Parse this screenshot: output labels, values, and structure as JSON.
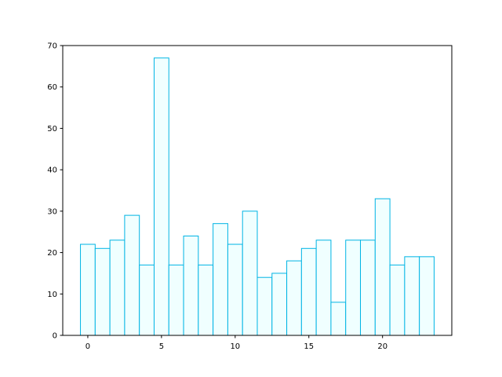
{
  "chart_data": {
    "type": "bar",
    "x": [
      0,
      1,
      2,
      3,
      4,
      5,
      6,
      7,
      8,
      9,
      10,
      11,
      12,
      13,
      14,
      15,
      16,
      17,
      18,
      19,
      20,
      21,
      22,
      23
    ],
    "values": [
      22,
      21,
      23,
      29,
      17,
      67,
      17,
      24,
      17,
      27,
      22,
      30,
      14,
      15,
      18,
      21,
      23,
      8,
      23,
      23,
      33,
      17,
      19,
      19
    ],
    "color": "#f0ffff",
    "edgecolor": "#00b4e4",
    "xlim": [
      -1.7,
      24.7
    ],
    "xticks": [
      0,
      5,
      10,
      15,
      20
    ],
    "ylim": [
      0,
      70
    ],
    "yticks": [
      0,
      10,
      20,
      30,
      40,
      50,
      60,
      70
    ]
  }
}
